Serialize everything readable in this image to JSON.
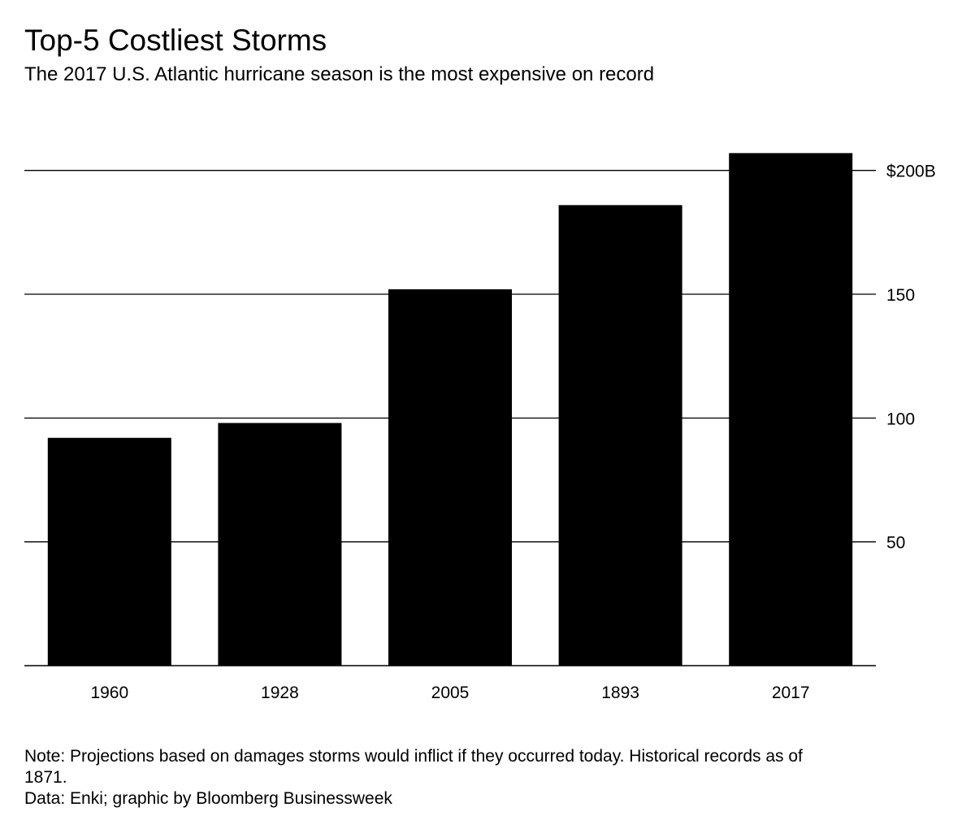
{
  "chart_data": {
    "type": "bar",
    "title": "Top-5 Costliest Storms",
    "subtitle": "The 2017 U.S. Atlantic hurricane season is the most expensive on record",
    "categories": [
      "1960",
      "1928",
      "2005",
      "1893",
      "2017"
    ],
    "values": [
      92,
      98,
      152,
      186,
      207
    ],
    "ylim": [
      0,
      215
    ],
    "yticks": [
      {
        "value": 50,
        "label": "50"
      },
      {
        "value": 100,
        "label": "100"
      },
      {
        "value": 150,
        "label": "150"
      },
      {
        "value": 200,
        "label": "$200B"
      }
    ],
    "y_axis_side": "right",
    "grid": true,
    "bar_color": "#000000",
    "xlabel": "",
    "ylabel": ""
  },
  "footer": {
    "note": "Note: Projections based on damages storms would inflict if they occurred today. Historical records as of 1871.",
    "source": "Data: Enki; graphic by Bloomberg Businessweek"
  }
}
